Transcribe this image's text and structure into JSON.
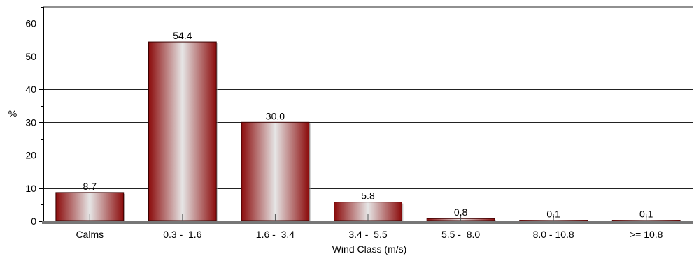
{
  "chart_data": {
    "type": "bar",
    "title": "",
    "xlabel": "Wind Class (m/s)",
    "ylabel": "%",
    "categories": [
      "Calms",
      "0.3 -  1.6",
      "1.6 -  3.4",
      "3.4 -  5.5",
      "5.5 -  8.0",
      "8.0 - 10.8",
      ">= 10.8"
    ],
    "values": [
      8.7,
      54.4,
      30.0,
      5.8,
      0.8,
      0.1,
      0.1
    ],
    "value_labels": [
      "8.7",
      "54.4",
      "30.0",
      "5.8",
      "0.8",
      "0.1",
      "0.1"
    ],
    "ylim": [
      0,
      65
    ],
    "yticks": [
      0,
      10,
      20,
      30,
      40,
      50,
      60
    ],
    "grid": true,
    "legend": "none",
    "colors": {
      "bar_dark": "#8b0b0b",
      "bar_light": "#e6e6e6",
      "grid": "#222222",
      "baseline": "#777777"
    }
  }
}
